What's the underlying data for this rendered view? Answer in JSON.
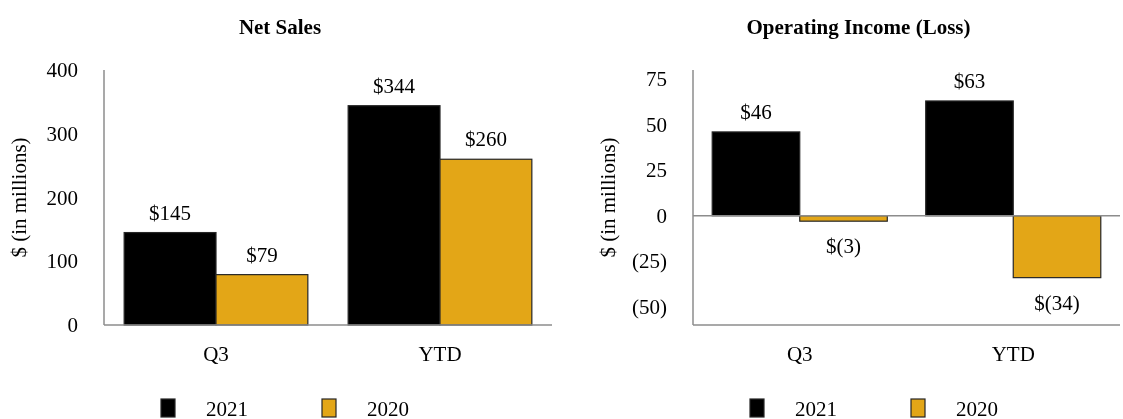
{
  "chart_data": [
    {
      "type": "bar",
      "title": "Net Sales",
      "ylabel": "$ (in millions)",
      "categories": [
        "Q3",
        "YTD"
      ],
      "series": [
        {
          "name": "2021",
          "color": "#000000",
          "values": [
            145,
            344
          ],
          "value_labels": [
            "$145",
            "$344"
          ]
        },
        {
          "name": "2020",
          "color": "#e3a617",
          "values": [
            79,
            260
          ],
          "value_labels": [
            "$79",
            "$260"
          ]
        }
      ],
      "ylim": [
        0,
        400
      ],
      "yticks": [
        0,
        100,
        200,
        300,
        400
      ],
      "legend": "bottom"
    },
    {
      "type": "bar",
      "title": "Operating Income (Loss)",
      "ylabel": "$ (in millions)",
      "categories": [
        "Q3",
        "YTD"
      ],
      "series": [
        {
          "name": "2021",
          "color": "#000000",
          "values": [
            46,
            63
          ],
          "value_labels": [
            "$46",
            "$63"
          ]
        },
        {
          "name": "2020",
          "color": "#e3a617",
          "values": [
            -3,
            -34
          ],
          "value_labels": [
            "$(3)",
            "$(34)"
          ]
        }
      ],
      "ylim": [
        -60,
        80
      ],
      "yticks": [
        {
          "value": -50,
          "label": "(50)"
        },
        {
          "value": -25,
          "label": "(25)"
        },
        0,
        25,
        50,
        75
      ],
      "legend": "bottom"
    }
  ]
}
